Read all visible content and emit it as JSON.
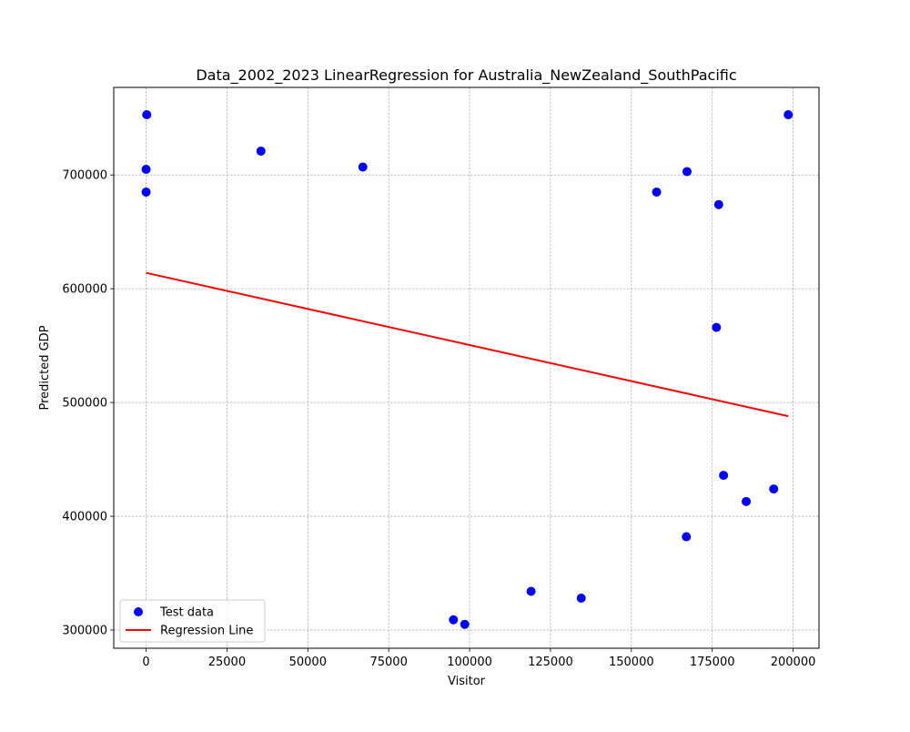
{
  "chart_data": {
    "type": "scatter",
    "title": "Data_2002_2023 LinearRegression for Australia_NewZealand_SouthPacific",
    "xlabel": "Visitor",
    "ylabel": "Predicted GDP",
    "xlim": [
      -10000,
      208000
    ],
    "ylim": [
      284000,
      777000
    ],
    "xticks": [
      0,
      25000,
      50000,
      75000,
      100000,
      125000,
      150000,
      175000,
      200000
    ],
    "yticks": [
      300000,
      400000,
      500000,
      600000,
      700000
    ],
    "grid": true,
    "legend_position": "lower-left",
    "series": [
      {
        "name": "Test data",
        "kind": "scatter",
        "color": "#0000ff",
        "points": [
          {
            "x": 200,
            "y": 753000
          },
          {
            "x": 0,
            "y": 705000
          },
          {
            "x": 0,
            "y": 685000
          },
          {
            "x": 35500,
            "y": 721000
          },
          {
            "x": 67000,
            "y": 707000
          },
          {
            "x": 95000,
            "y": 309000
          },
          {
            "x": 98500,
            "y": 305000
          },
          {
            "x": 119000,
            "y": 334000
          },
          {
            "x": 134500,
            "y": 328000
          },
          {
            "x": 157800,
            "y": 685000
          },
          {
            "x": 167000,
            "y": 382000
          },
          {
            "x": 167200,
            "y": 703000
          },
          {
            "x": 176300,
            "y": 566000
          },
          {
            "x": 177000,
            "y": 674000
          },
          {
            "x": 178500,
            "y": 436000
          },
          {
            "x": 185500,
            "y": 413000
          },
          {
            "x": 194000,
            "y": 424000
          },
          {
            "x": 198500,
            "y": 753000
          }
        ]
      },
      {
        "name": "Regression Line",
        "kind": "line",
        "color": "#ff0000",
        "points": [
          {
            "x": 0,
            "y": 614000
          },
          {
            "x": 198500,
            "y": 488000
          }
        ]
      }
    ]
  }
}
